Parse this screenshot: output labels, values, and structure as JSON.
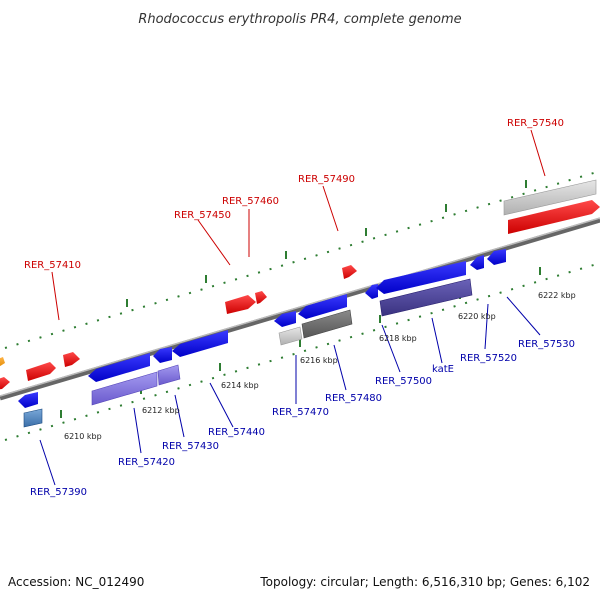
{
  "title": "Rhodococcus erythropolis PR4, complete genome",
  "footer": {
    "accession": "Accession: NC_012490",
    "summary": "Topology: circular; Length: 6,516,310 bp; Genes: 6,102"
  },
  "colors": {
    "forward_label": "#cc0000",
    "reverse_label": "#0000aa",
    "backbone": "#888888",
    "tick": "#2e7d32"
  },
  "scale_labels": [
    "6210 kbp",
    "6212 kbp",
    "6214 kbp",
    "6216 kbp",
    "6218 kbp",
    "6220 kbp",
    "6222 kbp"
  ],
  "forward_genes": [
    "RER_57410",
    "RER_57450",
    "RER_57460",
    "RER_57490",
    "RER_57540"
  ],
  "reverse_genes": [
    "RER_57390",
    "RER_57420",
    "RER_57430",
    "RER_57440",
    "RER_57470",
    "RER_57480",
    "RER_57500",
    "katE",
    "RER_57520",
    "RER_57530"
  ]
}
